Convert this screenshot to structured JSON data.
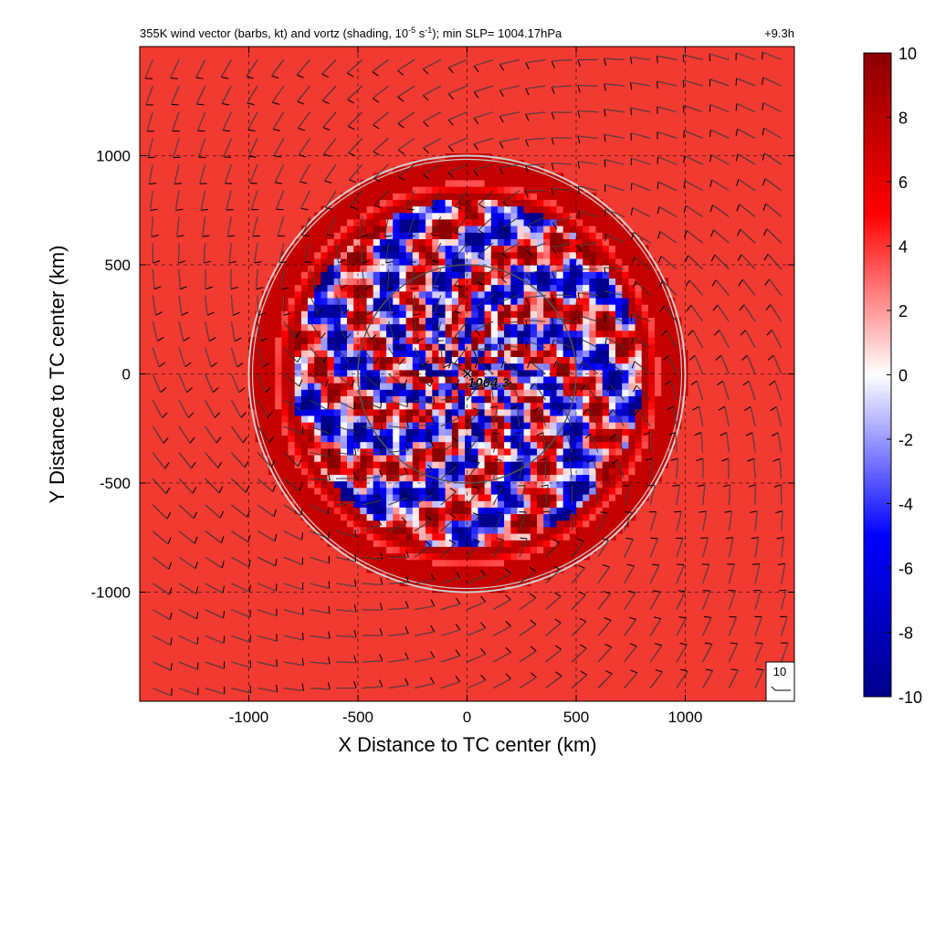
{
  "chart_data": {
    "type": "heatmap",
    "title": "355K wind vector (barbs, kt) and vortz (shading, 10",
    "title_exp1": "-5",
    "title_mid": " s",
    "title_exp2": "-1",
    "title_end": "); min SLP= 1004.17hPa",
    "time_label": "+9.3h",
    "xlabel": "X Distance to TC center (km)",
    "ylabel": "Y Distance to TC center (km)",
    "xlim": [
      -1500,
      1500
    ],
    "ylim": [
      -1500,
      1500
    ],
    "x_ticks": [
      -1000,
      -500,
      0,
      500,
      1000
    ],
    "y_ticks": [
      -1000,
      -500,
      0,
      500,
      1000
    ],
    "x_tick_labels": [
      "-1000",
      "-500",
      "0",
      "500",
      "1000"
    ],
    "y_tick_labels": [
      "-1000",
      "-500",
      "0",
      "500",
      "1000"
    ],
    "grid": "dashed",
    "center_marker": "×",
    "center_label": "1004.3",
    "range_rings_km": [
      500,
      1000
    ],
    "barb_reference_label": "10",
    "colorbar": {
      "min": -10,
      "max": 10,
      "ticks": [
        10,
        8,
        6,
        4,
        2,
        0,
        -2,
        -4,
        -6,
        -8,
        -10
      ],
      "tick_labels": [
        "10",
        "8",
        "6",
        "4",
        "2",
        "0",
        "-2",
        "-4",
        "-6",
        "-8",
        "-10"
      ],
      "colormap": [
        "#00008b",
        "#0000ff",
        "#ffffff",
        "#ff0000",
        "#8b0000"
      ]
    },
    "background_vorticity": 5.2
  }
}
